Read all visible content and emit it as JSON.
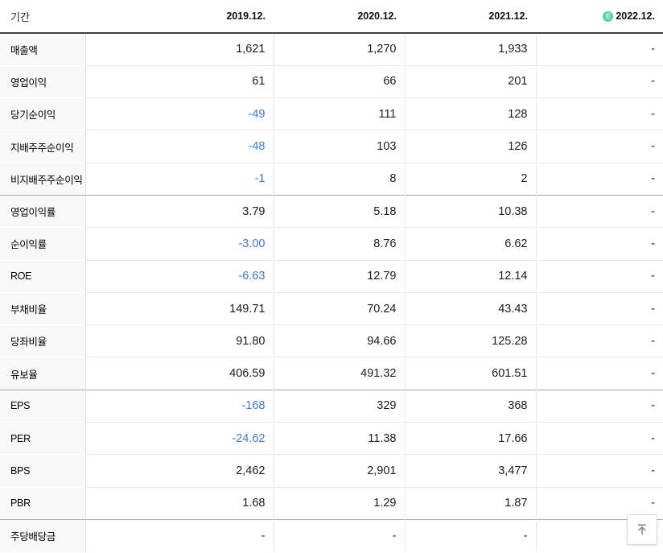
{
  "header": {
    "period_label": "기간",
    "estimate_badge": "E",
    "columns": [
      {
        "label": "2019.12.",
        "estimate": false
      },
      {
        "label": "2020.12.",
        "estimate": false
      },
      {
        "label": "2021.12.",
        "estimate": false
      },
      {
        "label": "2022.12.",
        "estimate": true
      }
    ]
  },
  "rows": [
    {
      "label": "매출액",
      "values": [
        "1,621",
        "1,270",
        "1,933",
        "-"
      ]
    },
    {
      "label": "영업이익",
      "values": [
        "61",
        "66",
        "201",
        "-"
      ]
    },
    {
      "label": "당기순이익",
      "values": [
        "-49",
        "111",
        "128",
        "-"
      ]
    },
    {
      "label": "지배주주순이익",
      "values": [
        "-48",
        "103",
        "126",
        "-"
      ]
    },
    {
      "label": "비지배주주순이익",
      "values": [
        "-1",
        "8",
        "2",
        "-"
      ]
    },
    {
      "label": "영업이익률",
      "values": [
        "3.79",
        "5.18",
        "10.38",
        "-"
      ],
      "group_start": true
    },
    {
      "label": "순이익률",
      "values": [
        "-3.00",
        "8.76",
        "6.62",
        "-"
      ]
    },
    {
      "label": "ROE",
      "values": [
        "-6.63",
        "12.79",
        "12.14",
        "-"
      ]
    },
    {
      "label": "부채비율",
      "values": [
        "149.71",
        "70.24",
        "43.43",
        "-"
      ]
    },
    {
      "label": "당좌비율",
      "values": [
        "91.80",
        "94.66",
        "125.28",
        "-"
      ]
    },
    {
      "label": "유보율",
      "values": [
        "406.59",
        "491.32",
        "601.51",
        "-"
      ]
    },
    {
      "label": "EPS",
      "values": [
        "-168",
        "329",
        "368",
        "-"
      ],
      "group_start": true
    },
    {
      "label": "PER",
      "values": [
        "-24.62",
        "11.38",
        "17.66",
        "-"
      ]
    },
    {
      "label": "BPS",
      "values": [
        "2,462",
        "2,901",
        "3,477",
        "-"
      ]
    },
    {
      "label": "PBR",
      "values": [
        "1.68",
        "1.29",
        "1.87",
        "-"
      ]
    },
    {
      "label": "주당배당금",
      "values": [
        "-",
        "-",
        "-",
        "-"
      ],
      "group_start": true
    }
  ],
  "colors": {
    "negative_value": "#3e7bd7",
    "estimate_green": "#53d1a9",
    "group_separator": "#a6a6a6",
    "row_separator": "#ebebeb",
    "header_rule": "#3f3f3f"
  },
  "scroll_top_button": {
    "icon": "arrow-up-to-top-icon"
  }
}
